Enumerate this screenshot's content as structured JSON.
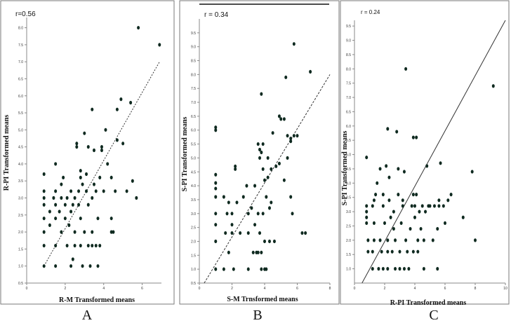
{
  "colors": {
    "point": "#0f2a20",
    "frame": "#7a7a7a",
    "line": "#333333"
  },
  "chart_data": [
    {
      "type": "scatter",
      "panel_letter": "A",
      "annotation": "r=0.56",
      "xlabel": "R-M Transformed means",
      "ylabel": "R-PI Transformed means",
      "xlim": [
        0,
        7
      ],
      "ylim": [
        0.5,
        8.3
      ],
      "xticks": [
        {
          "v": 0,
          "label": "0"
        },
        {
          "v": 2,
          "label": "2"
        },
        {
          "v": 4,
          "label": "4"
        },
        {
          "v": 6,
          "label": "6"
        }
      ],
      "yticks": [
        {
          "v": 0.5,
          "label": "0.5"
        },
        {
          "v": 1,
          "label": "1.0"
        },
        {
          "v": 1.5,
          "label": "1.5"
        },
        {
          "v": 2,
          "label": "2.0"
        },
        {
          "v": 2.5,
          "label": "2.5"
        },
        {
          "v": 3,
          "label": "3.0"
        },
        {
          "v": 3.5,
          "label": "3.5"
        },
        {
          "v": 4,
          "label": "4.0"
        },
        {
          "v": 4.5,
          "label": "4.5"
        },
        {
          "v": 5,
          "label": "5.0"
        },
        {
          "v": 5.5,
          "label": "5.5"
        },
        {
          "v": 6,
          "label": "6.0"
        },
        {
          "v": 6.5,
          "label": "6.5"
        },
        {
          "v": 7,
          "label": "7.0"
        },
        {
          "v": 7.5,
          "label": "7.5"
        },
        {
          "v": 8,
          "label": "8.0"
        }
      ],
      "fit_line": {
        "style": "dotted",
        "from": [
          0.9,
          1.0
        ],
        "to": [
          6.9,
          7.0
        ]
      },
      "points": [
        [
          0.9,
          1.0
        ],
        [
          0.9,
          1.6
        ],
        [
          0.9,
          2.0
        ],
        [
          0.9,
          2.4
        ],
        [
          0.9,
          2.8
        ],
        [
          0.9,
          3.0
        ],
        [
          0.9,
          3.2
        ],
        [
          0.9,
          3.7
        ],
        [
          1.2,
          2.2
        ],
        [
          1.2,
          2.6
        ],
        [
          1.4,
          3.0
        ],
        [
          1.5,
          1.0
        ],
        [
          1.5,
          1.6
        ],
        [
          1.5,
          2.4
        ],
        [
          1.5,
          2.8
        ],
        [
          1.5,
          3.2
        ],
        [
          1.5,
          4.0
        ],
        [
          1.7,
          2.6
        ],
        [
          1.8,
          2.0
        ],
        [
          1.8,
          3.0
        ],
        [
          1.8,
          3.4
        ],
        [
          1.9,
          3.6
        ],
        [
          2.0,
          2.4
        ],
        [
          2.0,
          2.8
        ],
        [
          2.1,
          1.6
        ],
        [
          2.1,
          3.0
        ],
        [
          2.2,
          2.2
        ],
        [
          2.3,
          1.0
        ],
        [
          2.3,
          2.6
        ],
        [
          2.3,
          3.2
        ],
        [
          2.4,
          1.2
        ],
        [
          2.4,
          2.8
        ],
        [
          2.5,
          1.6
        ],
        [
          2.5,
          2.0
        ],
        [
          2.5,
          3.0
        ],
        [
          2.6,
          4.5
        ],
        [
          2.6,
          4.6
        ],
        [
          2.7,
          2.8
        ],
        [
          2.7,
          3.2
        ],
        [
          2.8,
          1.6
        ],
        [
          2.8,
          2.4
        ],
        [
          2.8,
          3.6
        ],
        [
          2.8,
          3.8
        ],
        [
          2.9,
          1.0
        ],
        [
          2.9,
          3.4
        ],
        [
          3.0,
          2.0
        ],
        [
          3.0,
          4.9
        ],
        [
          3.1,
          3.2
        ],
        [
          3.1,
          3.7
        ],
        [
          3.2,
          1.6
        ],
        [
          3.2,
          2.8
        ],
        [
          3.2,
          4.5
        ],
        [
          3.3,
          1.0
        ],
        [
          3.4,
          1.6
        ],
        [
          3.4,
          2.0
        ],
        [
          3.4,
          3.0
        ],
        [
          3.4,
          5.6
        ],
        [
          3.5,
          3.4
        ],
        [
          3.5,
          4.4
        ],
        [
          3.6,
          1.6
        ],
        [
          3.6,
          3.2
        ],
        [
          3.7,
          1.0
        ],
        [
          3.7,
          2.4
        ],
        [
          3.8,
          1.6
        ],
        [
          3.8,
          3.6
        ],
        [
          3.9,
          4.4
        ],
        [
          3.9,
          4.5
        ],
        [
          4.0,
          3.2
        ],
        [
          4.1,
          5.0
        ],
        [
          4.2,
          4.0
        ],
        [
          4.4,
          2.0
        ],
        [
          4.4,
          2.4
        ],
        [
          4.4,
          3.6
        ],
        [
          4.5,
          2.0
        ],
        [
          4.6,
          3.2
        ],
        [
          4.7,
          4.7
        ],
        [
          4.7,
          5.6
        ],
        [
          4.9,
          5.9
        ],
        [
          5.0,
          4.6
        ],
        [
          5.2,
          3.2
        ],
        [
          5.4,
          5.8
        ],
        [
          5.5,
          3.5
        ],
        [
          5.7,
          3.0
        ],
        [
          5.8,
          8.0
        ],
        [
          6.9,
          7.5
        ]
      ]
    },
    {
      "type": "scatter",
      "panel_letter": "B",
      "annotation": "r = 0.34",
      "xlabel": "S-M Trnsformed means",
      "ylabel": "S-PI Transformed means",
      "xlim": [
        0,
        8
      ],
      "ylim": [
        0.5,
        10
      ],
      "xticks": [
        {
          "v": 0,
          "label": "0"
        },
        {
          "v": 2,
          "label": "2"
        },
        {
          "v": 4,
          "label": "4"
        },
        {
          "v": 6,
          "label": "6"
        },
        {
          "v": 8,
          "label": "8"
        }
      ],
      "yticks": [
        {
          "v": 0.5,
          "label": "0.5"
        },
        {
          "v": 1,
          "label": "1.0"
        },
        {
          "v": 1.5,
          "label": "1.5"
        },
        {
          "v": 2,
          "label": "2.0"
        },
        {
          "v": 2.5,
          "label": "2.5"
        },
        {
          "v": 3,
          "label": "3.0"
        },
        {
          "v": 3.5,
          "label": "3.5"
        },
        {
          "v": 4,
          "label": "4.0"
        },
        {
          "v": 4.5,
          "label": "4.5"
        },
        {
          "v": 5,
          "label": "5.0"
        },
        {
          "v": 5.5,
          "label": "5.5"
        },
        {
          "v": 6,
          "label": "6.0"
        },
        {
          "v": 6.5,
          "label": "6.5"
        },
        {
          "v": 7,
          "label": "7.0"
        },
        {
          "v": 7.5,
          "label": "7.5"
        },
        {
          "v": 8,
          "label": "8.0"
        },
        {
          "v": 8.5,
          "label": "8.5"
        },
        {
          "v": 9,
          "label": "9.0"
        },
        {
          "v": 9.5,
          "label": "9.5"
        }
      ],
      "fit_line": {
        "style": "dashed",
        "from": [
          0.3,
          0.5
        ],
        "to": [
          8.0,
          8.0
        ]
      },
      "points": [
        [
          1.0,
          1.0
        ],
        [
          1.0,
          2.0
        ],
        [
          1.0,
          2.6
        ],
        [
          1.0,
          3.0
        ],
        [
          1.0,
          3.6
        ],
        [
          1.0,
          3.9
        ],
        [
          1.0,
          4.1
        ],
        [
          1.0,
          4.4
        ],
        [
          1.0,
          6.0
        ],
        [
          1.0,
          6.1
        ],
        [
          1.5,
          1.0
        ],
        [
          1.5,
          3.6
        ],
        [
          1.6,
          2.3
        ],
        [
          1.7,
          3.0
        ],
        [
          1.8,
          1.6
        ],
        [
          1.8,
          3.4
        ],
        [
          2.0,
          2.3
        ],
        [
          2.0,
          2.6
        ],
        [
          2.0,
          3.0
        ],
        [
          2.1,
          1.0
        ],
        [
          2.2,
          4.6
        ],
        [
          2.2,
          4.7
        ],
        [
          2.3,
          3.4
        ],
        [
          2.5,
          2.3
        ],
        [
          2.7,
          3.6
        ],
        [
          2.9,
          4.0
        ],
        [
          3.0,
          1.0
        ],
        [
          3.0,
          2.3
        ],
        [
          3.0,
          3.0
        ],
        [
          3.2,
          3.2
        ],
        [
          3.3,
          1.6
        ],
        [
          3.4,
          2.6
        ],
        [
          3.4,
          4.0
        ],
        [
          3.5,
          1.6
        ],
        [
          3.6,
          1.6
        ],
        [
          3.6,
          3.0
        ],
        [
          3.6,
          5.5
        ],
        [
          3.7,
          2.3
        ],
        [
          3.7,
          5.0
        ],
        [
          3.7,
          5.3
        ],
        [
          3.8,
          1.0
        ],
        [
          3.8,
          1.6
        ],
        [
          3.8,
          5.2
        ],
        [
          3.8,
          7.3
        ],
        [
          3.9,
          3.0
        ],
        [
          3.9,
          4.6
        ],
        [
          3.9,
          5.5
        ],
        [
          4.0,
          1.0
        ],
        [
          4.0,
          2.0
        ],
        [
          4.0,
          4.2
        ],
        [
          4.1,
          1.0
        ],
        [
          4.1,
          3.6
        ],
        [
          4.2,
          4.3
        ],
        [
          4.2,
          5.0
        ],
        [
          4.3,
          2.0
        ],
        [
          4.3,
          3.2
        ],
        [
          4.4,
          3.4
        ],
        [
          4.4,
          4.6
        ],
        [
          4.5,
          5.9
        ],
        [
          4.6,
          2.0
        ],
        [
          4.7,
          4.7
        ],
        [
          4.9,
          4.8
        ],
        [
          4.9,
          6.5
        ],
        [
          5.0,
          6.4
        ],
        [
          5.2,
          4.2
        ],
        [
          5.2,
          6.4
        ],
        [
          5.3,
          7.9
        ],
        [
          5.4,
          5.0
        ],
        [
          5.4,
          5.8
        ],
        [
          5.6,
          3.6
        ],
        [
          5.6,
          5.6
        ],
        [
          5.6,
          5.7
        ],
        [
          5.7,
          3.0
        ],
        [
          5.8,
          5.8
        ],
        [
          5.8,
          9.1
        ],
        [
          6.0,
          5.8
        ],
        [
          6.3,
          2.3
        ],
        [
          6.5,
          2.3
        ],
        [
          6.8,
          8.1
        ]
      ]
    },
    {
      "type": "scatter",
      "panel_letter": "C",
      "annotation": "r = 0.24",
      "xlabel": "R-PI Transformed means",
      "ylabel": "S-PI Transformed means",
      "xlim": [
        0,
        10
      ],
      "ylim": [
        0.5,
        9.7
      ],
      "xticks": [
        {
          "v": 0,
          "label": "0"
        },
        {
          "v": 2,
          "label": "2"
        },
        {
          "v": 4,
          "label": "4"
        },
        {
          "v": 6,
          "label": "6"
        },
        {
          "v": 8,
          "label": "8"
        },
        {
          "v": 10,
          "label": "10"
        }
      ],
      "yticks": [
        {
          "v": 1,
          "label": "1.0"
        },
        {
          "v": 1.5,
          "label": "1.5"
        },
        {
          "v": 2,
          "label": "2.0"
        },
        {
          "v": 2.5,
          "label": "2.5"
        },
        {
          "v": 3,
          "label": "3.0"
        },
        {
          "v": 3.5,
          "label": "3.5"
        },
        {
          "v": 4,
          "label": "4.0"
        },
        {
          "v": 4.5,
          "label": "4.5"
        },
        {
          "v": 5,
          "label": "5.0"
        },
        {
          "v": 5.5,
          "label": "5.5"
        },
        {
          "v": 6,
          "label": "6.0"
        },
        {
          "v": 6.5,
          "label": "6.5"
        },
        {
          "v": 7,
          "label": "7.0"
        },
        {
          "v": 7.5,
          "label": "7.5"
        },
        {
          "v": 8,
          "label": "8.0"
        },
        {
          "v": 8.5,
          "label": "8.5"
        },
        {
          "v": 9,
          "label": "9.0"
        },
        {
          "v": 9.5,
          "label": "9.5"
        }
      ],
      "fit_line": {
        "style": "solid",
        "from": [
          0.5,
          0.5
        ],
        "to": [
          10,
          9.7
        ]
      },
      "points": [
        [
          0.8,
          2.6
        ],
        [
          0.8,
          2.8
        ],
        [
          0.8,
          3.0
        ],
        [
          0.8,
          3.2
        ],
        [
          0.8,
          4.9
        ],
        [
          0.9,
          1.6
        ],
        [
          0.9,
          2.0
        ],
        [
          1.2,
          1.0
        ],
        [
          1.2,
          1.6
        ],
        [
          1.2,
          3.2
        ],
        [
          1.3,
          2.0
        ],
        [
          1.3,
          2.6
        ],
        [
          1.3,
          3.4
        ],
        [
          1.4,
          3.6
        ],
        [
          1.5,
          4.0
        ],
        [
          1.6,
          1.0
        ],
        [
          1.7,
          2.0
        ],
        [
          1.7,
          4.5
        ],
        [
          1.8,
          1.6
        ],
        [
          1.9,
          1.0
        ],
        [
          1.9,
          3.2
        ],
        [
          1.9,
          3.6
        ],
        [
          2.0,
          2.6
        ],
        [
          2.1,
          4.6
        ],
        [
          2.2,
          1.0
        ],
        [
          2.2,
          1.6
        ],
        [
          2.2,
          2.0
        ],
        [
          2.2,
          5.9
        ],
        [
          2.3,
          3.4
        ],
        [
          2.3,
          4.2
        ],
        [
          2.4,
          2.8
        ],
        [
          2.5,
          1.6
        ],
        [
          2.6,
          2.4
        ],
        [
          2.6,
          3.0
        ],
        [
          2.7,
          1.0
        ],
        [
          2.7,
          2.0
        ],
        [
          2.8,
          5.8
        ],
        [
          2.9,
          3.6
        ],
        [
          2.9,
          4.5
        ],
        [
          3.0,
          1.0
        ],
        [
          3.0,
          1.6
        ],
        [
          3.1,
          2.6
        ],
        [
          3.2,
          3.2
        ],
        [
          3.2,
          3.4
        ],
        [
          3.3,
          1.0
        ],
        [
          3.3,
          4.4
        ],
        [
          3.4,
          2.0
        ],
        [
          3.4,
          8.0
        ],
        [
          3.5,
          1.6
        ],
        [
          3.6,
          1.0
        ],
        [
          3.7,
          2.4
        ],
        [
          3.8,
          3.2
        ],
        [
          3.9,
          1.6
        ],
        [
          3.9,
          3.6
        ],
        [
          3.9,
          5.6
        ],
        [
          4.0,
          2.8
        ],
        [
          4.0,
          3.2
        ],
        [
          4.1,
          3.6
        ],
        [
          4.1,
          5.6
        ],
        [
          4.2,
          1.6
        ],
        [
          4.2,
          2.0
        ],
        [
          4.3,
          3.0
        ],
        [
          4.4,
          2.4
        ],
        [
          4.5,
          3.2
        ],
        [
          4.6,
          1.0
        ],
        [
          4.6,
          2.0
        ],
        [
          4.7,
          3.0
        ],
        [
          4.8,
          4.6
        ],
        [
          4.9,
          3.2
        ],
        [
          5.0,
          3.2
        ],
        [
          5.2,
          2.0
        ],
        [
          5.3,
          3.2
        ],
        [
          5.5,
          1.0
        ],
        [
          5.5,
          2.4
        ],
        [
          5.6,
          3.2
        ],
        [
          5.6,
          3.4
        ],
        [
          5.7,
          4.7
        ],
        [
          5.9,
          3.2
        ],
        [
          6.0,
          2.6
        ],
        [
          6.2,
          3.4
        ],
        [
          6.4,
          3.6
        ],
        [
          7.2,
          2.8
        ],
        [
          7.8,
          4.4
        ],
        [
          8.0,
          2.0
        ],
        [
          9.2,
          7.4
        ]
      ]
    }
  ]
}
